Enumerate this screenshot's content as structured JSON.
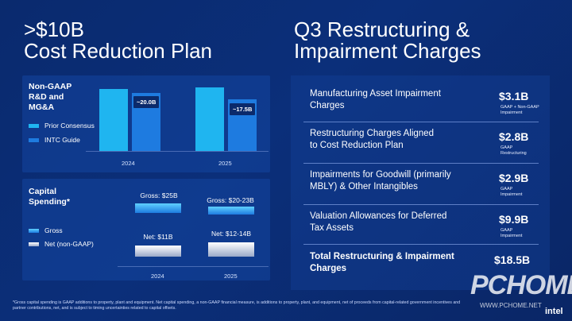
{
  "titles": {
    "left_line1": ">$10B",
    "left_line2": "Cost Reduction Plan",
    "right_line1": "Q3 Restructuring &",
    "right_line2": "Impairment Charges"
  },
  "opex_chart": {
    "label_line1": "Non-GAAP",
    "label_line2": "R&D and",
    "label_line3": "MG&A",
    "legend": [
      "Prior Consensus",
      "INTC Guide"
    ],
    "years": [
      "2024",
      "2025"
    ],
    "guide_values": [
      "~20.0B",
      "~17.5B"
    ],
    "colors": {
      "prior": "#1fb5f0",
      "guide": "#1e7be0"
    }
  },
  "capex_chart": {
    "label_line1": "Capital",
    "label_line2": "Spending*",
    "legend": [
      "Gross",
      "Net (non-GAAP)"
    ],
    "years": [
      "2024",
      "2025"
    ],
    "gross_labels": [
      "Gross: $25B",
      "Gross: $20-23B"
    ],
    "net_labels": [
      "Net: $11B",
      "Net: $12-14B"
    ]
  },
  "charges": [
    {
      "label_line1": "Manufacturing Asset Impairment",
      "label_line2": "Charges",
      "amount": "$3.1B",
      "note_line1": "GAAP + Non-GAAP",
      "note_line2": "Impairment"
    },
    {
      "label_line1": "Restructuring Charges Aligned",
      "label_line2": "to Cost Reduction Plan",
      "amount": "$2.8B",
      "note_line1": "GAAP",
      "note_line2": "Restructuring"
    },
    {
      "label_line1": "Impairments for Goodwill (primarily",
      "label_line2": "MBLY) & Other Intangibles",
      "amount": "$2.9B",
      "note_line1": "GAAP",
      "note_line2": "Impairment"
    },
    {
      "label_line1": "Valuation Allowances for Deferred",
      "label_line2": "Tax Assets",
      "amount": "$9.9B",
      "note_line1": "GAAP",
      "note_line2": "Impairment"
    },
    {
      "label_line1": "Total Restructuring & Impairment",
      "label_line2": "Charges",
      "amount": "$18.5B",
      "note_line1": "",
      "note_line2": ""
    }
  ],
  "footnote": "*Gross capital spending is GAAP additions to property, plant and equipment. Net capital spending, a non-GAAP financial measure, is additions to property, plant, and equipment, net of proceeds from capital-related government incentives and partner contributions, net, and is subject to timing uncertainties related to capital offsets.",
  "brand": {
    "logo": "intel",
    "watermark": "PCHOME",
    "watermark_url": "WWW.PCHOME.NET"
  }
}
